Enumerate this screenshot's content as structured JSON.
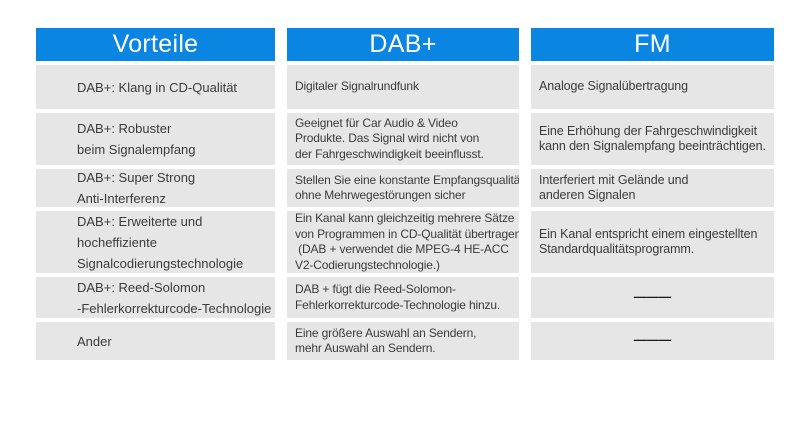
{
  "chart_data": {
    "type": "table",
    "title": "",
    "columns": [
      "Vorteile",
      "DAB+",
      "FM"
    ],
    "rows": [
      [
        "DAB+: Klang in CD-Qualität",
        "Digitaler Signalrundfunk",
        "Analoge Signalübertragung"
      ],
      [
        "DAB+: Robuster\nbeim Signalempfang",
        "Geeignet für Car Audio & Video\nProdukte. Das Signal wird nicht von\nder Fahrgeschwindigkeit beeinflusst.",
        "Eine Erhöhung der Fahrgeschwindigkeit\nkann den Signalempfang beeinträchtigen."
      ],
      [
        "DAB+: Super Strong\nAnti-Interferenz",
        "Stellen Sie eine konstante Empfangsqualität\nohne Mehrwegestörungen sicher",
        "Interferiert mit Gelände und\nanderen Signalen"
      ],
      [
        "DAB+: Erweiterte und\nhocheffiziente\nSignalcodierungstechnologie",
        "Ein Kanal kann gleichzeitig mehrere Sätze\nvon Programmen in CD-Qualität übertragen.\n (DAB + verwendet die MPEG-4 HE-ACC\nV2-Codierungstechnologie.)",
        "Ein Kanal entspricht einem eingestellten\nStandardqualitätsprogramm."
      ],
      [
        "DAB+: Reed-Solomon\n-Fehlerkorrekturcode-Technologie",
        "DAB + fügt die Reed-Solomon-\nFehlerkorrekturcode-Technologie hinzu.",
        "———"
      ],
      [
        "Ander",
        "Eine größere Auswahl an Sendern,\nmehr Auswahl an Sendern.",
        "———"
      ]
    ],
    "layout": {
      "header_position": "top",
      "grid": "off",
      "gaps_between_cells": true
    }
  },
  "colors": {
    "header_bg": "#0b85e2",
    "header_text": "#ffffff",
    "cell_bg": "#e7e6e6",
    "body_text": "#3b3b3b",
    "page_bg": "#ffffff"
  }
}
